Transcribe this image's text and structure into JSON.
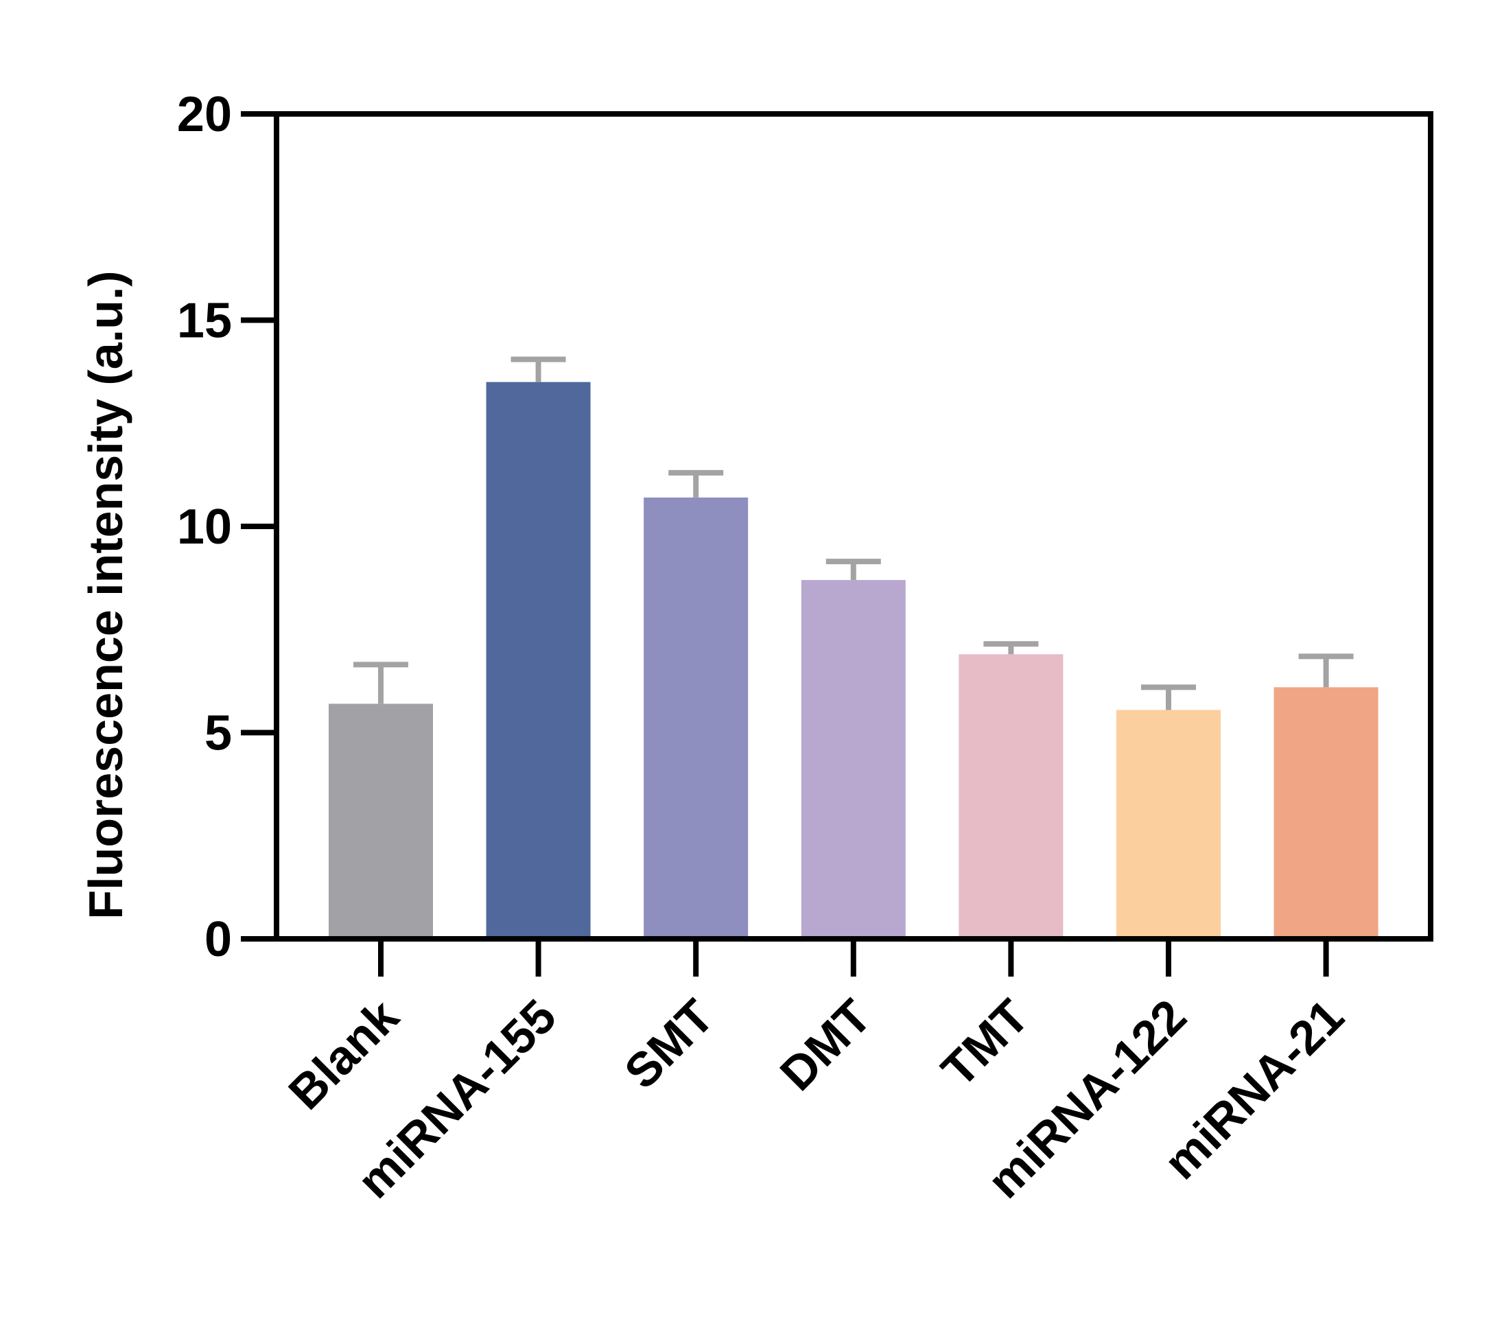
{
  "chart_data": {
    "type": "bar",
    "title": "",
    "xlabel": "",
    "ylabel": "Fluorescence intensity (a.u.)",
    "ylim": [
      0,
      20
    ],
    "yticks": [
      0,
      5,
      10,
      15,
      20
    ],
    "grid": false,
    "categories": [
      "Blank",
      "miRNA-155",
      "SMT",
      "DMT",
      "TMT",
      "miRNA-122",
      "miRNA-21"
    ],
    "values": [
      5.7,
      13.5,
      10.7,
      8.7,
      6.9,
      5.55,
      6.1
    ],
    "error_upper": [
      0.95,
      0.55,
      0.6,
      0.45,
      0.25,
      0.55,
      0.75
    ],
    "colors": [
      "#a2a1a6",
      "#50689c",
      "#8e8ebf",
      "#b8a8cf",
      "#e7bcc6",
      "#fccf9f",
      "#f0a585"
    ],
    "error_color": "#a3a3a3"
  }
}
